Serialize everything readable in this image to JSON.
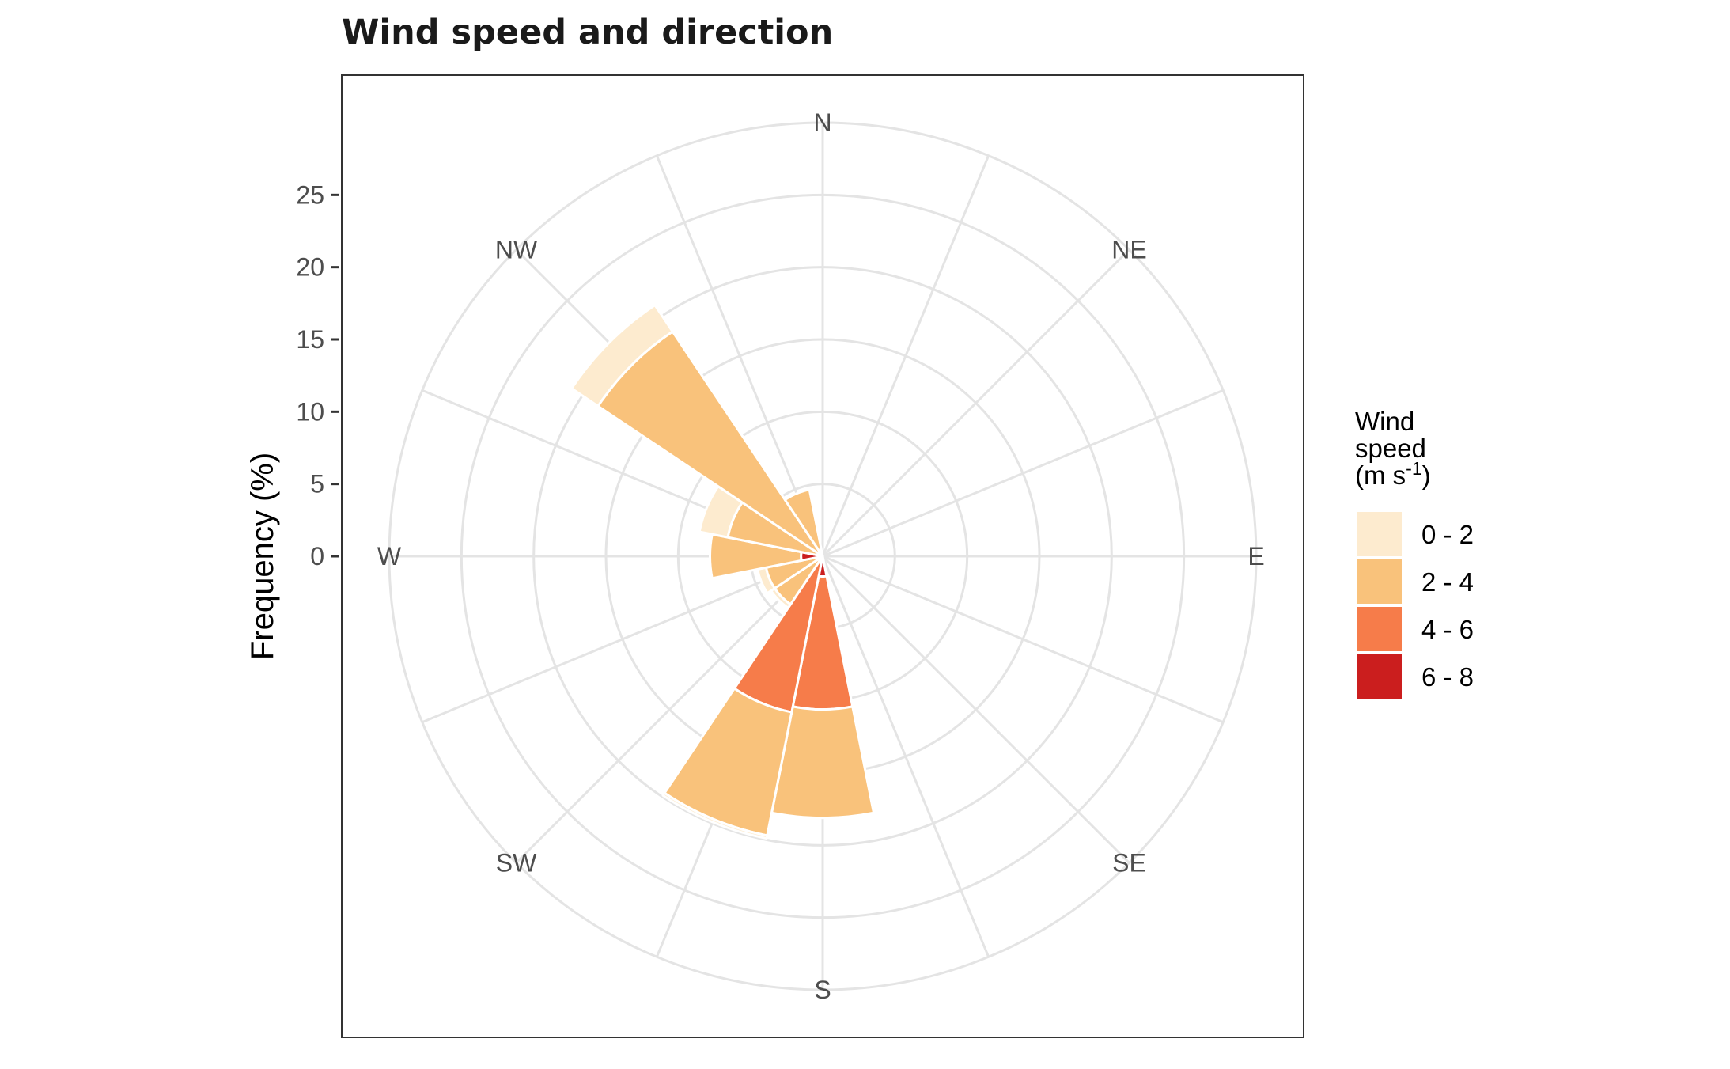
{
  "chart_data": {
    "type": "wind-rose",
    "title": "Wind speed and direction",
    "ylabel": "Frequency (%)",
    "y_ticks": [
      0,
      5,
      10,
      15,
      20,
      25
    ],
    "ylim": [
      0,
      30
    ],
    "grid": true,
    "legend_position": "right",
    "legend_title": [
      "Wind",
      "speed",
      "(m s",
      "-1",
      ")"
    ],
    "directions": [
      "N",
      "NE",
      "E",
      "SE",
      "S",
      "SW",
      "W",
      "NW"
    ],
    "sector_directions_deg": [
      0,
      22.5,
      45,
      67.5,
      90,
      112.5,
      135,
      157.5,
      180,
      202.5,
      225,
      247.5,
      270,
      292.5,
      315,
      337.5
    ],
    "speed_bins": [
      "0 - 2",
      "2 - 4",
      "4 - 6",
      "6 - 8"
    ],
    "colors": [
      "#fdebcf",
      "#f9c27b",
      "#f67c4a",
      "#cb1e1e"
    ],
    "series": [
      {
        "name": "0 - 2",
        "values": [
          0,
          0,
          0,
          0,
          0,
          0,
          0,
          0,
          0.0,
          0.2,
          0.3,
          0.6,
          0.0,
          2.0,
          2.2,
          0.0
        ]
      },
      {
        "name": "2 - 4",
        "values": [
          0,
          0,
          0,
          0,
          0,
          0,
          0,
          0,
          7.5,
          8.7,
          4.0,
          4.0,
          6.3,
          6.7,
          18.7,
          4.7
        ]
      },
      {
        "name": "4 - 6",
        "values": [
          0,
          0,
          0,
          0,
          0,
          0,
          0,
          0,
          9.2,
          11.0,
          0.0,
          0.0,
          0.0,
          0.0,
          0.0,
          0.0
        ]
      },
      {
        "name": "6 - 8",
        "values": [
          0,
          0,
          0,
          0,
          0,
          0,
          0,
          0,
          1.4,
          0.0,
          0.0,
          0.0,
          1.5,
          0.0,
          0.0,
          0.0
        ]
      }
    ]
  }
}
